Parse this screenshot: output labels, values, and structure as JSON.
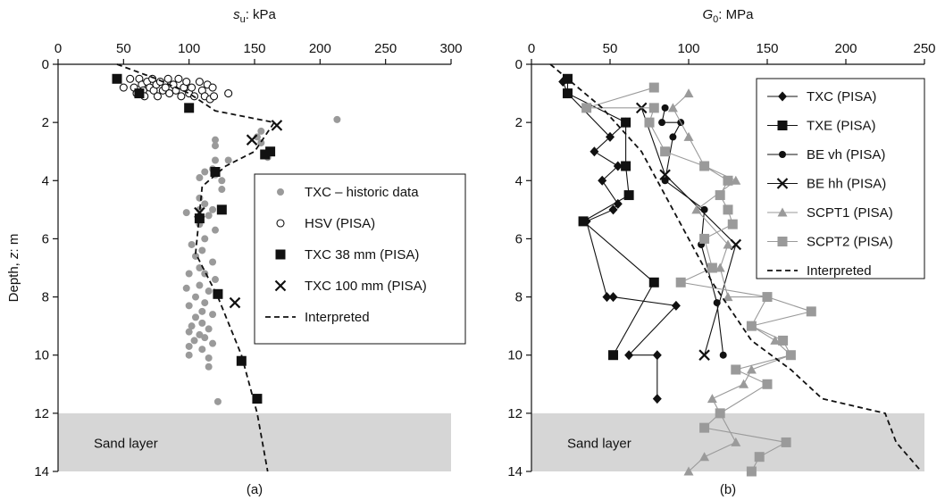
{
  "chart_data": [
    {
      "type": "scatter",
      "panel_label": "(a)",
      "x_symbol": "s",
      "x_subscript": "u",
      "x_unit": ": kPa",
      "y_prefix": "Depth, ",
      "y_symbol": "z",
      "y_unit": ": m",
      "xlim": [
        0,
        300
      ],
      "ylim": [
        14,
        0
      ],
      "xticks": [
        "0",
        "50",
        "100",
        "150",
        "200",
        "250",
        "300"
      ],
      "yticks": [
        "0",
        "2",
        "4",
        "6",
        "8",
        "10",
        "12",
        "14"
      ],
      "sand_layer": {
        "label": "Sand layer",
        "top": 12,
        "bottom": 14
      },
      "legend_position": "right",
      "series": [
        {
          "name": "TXC – historic data",
          "marker": "circle-filled",
          "color": "#9a9a9a",
          "points": [
            [
              213,
              1.9
            ],
            [
              155,
              2.3
            ],
            [
              152,
              2.5
            ],
            [
              120,
              2.6
            ],
            [
              155,
              2.7
            ],
            [
              120,
              2.8
            ],
            [
              160,
              3.2
            ],
            [
              120,
              3.3
            ],
            [
              130,
              3.3
            ],
            [
              118,
              3.6
            ],
            [
              112,
              3.7
            ],
            [
              120,
              3.8
            ],
            [
              108,
              3.9
            ],
            [
              125,
              4.0
            ],
            [
              125,
              4.3
            ],
            [
              108,
              4.6
            ],
            [
              112,
              4.8
            ],
            [
              108,
              5.0
            ],
            [
              118,
              5.0
            ],
            [
              98,
              5.1
            ],
            [
              115,
              5.2
            ],
            [
              108,
              5.5
            ],
            [
              120,
              5.7
            ],
            [
              112,
              6.0
            ],
            [
              102,
              6.2
            ],
            [
              110,
              6.4
            ],
            [
              105,
              6.6
            ],
            [
              118,
              6.8
            ],
            [
              108,
              7.0
            ],
            [
              100,
              7.2
            ],
            [
              112,
              7.2
            ],
            [
              120,
              7.4
            ],
            [
              108,
              7.6
            ],
            [
              98,
              7.7
            ],
            [
              115,
              7.8
            ],
            [
              105,
              8.0
            ],
            [
              112,
              8.2
            ],
            [
              100,
              8.3
            ],
            [
              110,
              8.5
            ],
            [
              118,
              8.6
            ],
            [
              105,
              8.7
            ],
            [
              110,
              8.9
            ],
            [
              102,
              9.0
            ],
            [
              115,
              9.1
            ],
            [
              100,
              9.2
            ],
            [
              108,
              9.3
            ],
            [
              112,
              9.4
            ],
            [
              104,
              9.5
            ],
            [
              118,
              9.6
            ],
            [
              100,
              9.7
            ],
            [
              110,
              9.8
            ],
            [
              115,
              10.1
            ],
            [
              100,
              10.0
            ],
            [
              115,
              10.4
            ],
            [
              122,
              11.6
            ]
          ]
        },
        {
          "name": "HSV (PISA)",
          "marker": "circle-open",
          "color": "#111111",
          "points": [
            [
              50,
              0.8
            ],
            [
              55,
              0.5
            ],
            [
              58,
              0.8
            ],
            [
              60,
              1.0
            ],
            [
              62,
              0.5
            ],
            [
              64,
              0.7
            ],
            [
              65,
              0.9
            ],
            [
              66,
              1.1
            ],
            [
              68,
              0.6
            ],
            [
              70,
              0.8
            ],
            [
              72,
              0.5
            ],
            [
              73,
              0.9
            ],
            [
              75,
              0.7
            ],
            [
              76,
              1.1
            ],
            [
              78,
              0.6
            ],
            [
              80,
              0.9
            ],
            [
              82,
              0.8
            ],
            [
              84,
              0.5
            ],
            [
              85,
              1.0
            ],
            [
              88,
              0.7
            ],
            [
              90,
              0.9
            ],
            [
              92,
              0.5
            ],
            [
              94,
              1.1
            ],
            [
              96,
              0.8
            ],
            [
              98,
              0.6
            ],
            [
              100,
              1.0
            ],
            [
              102,
              0.8
            ],
            [
              104,
              1.1
            ],
            [
              108,
              0.6
            ],
            [
              110,
              0.9
            ],
            [
              112,
              1.1
            ],
            [
              114,
              0.7
            ],
            [
              116,
              1.2
            ],
            [
              118,
              0.8
            ],
            [
              119,
              1.1
            ],
            [
              130,
              1.0
            ]
          ]
        },
        {
          "name": "TXC 38 mm (PISA)",
          "marker": "square-filled",
          "color": "#111111",
          "points": [
            [
              45,
              0.5
            ],
            [
              62,
              1.0
            ],
            [
              100,
              1.5
            ],
            [
              162,
              3.0
            ],
            [
              158,
              3.1
            ],
            [
              120,
              3.7
            ],
            [
              125,
              5.0
            ],
            [
              108,
              5.3
            ],
            [
              122,
              7.9
            ],
            [
              140,
              10.2
            ],
            [
              152,
              11.5
            ]
          ]
        },
        {
          "name": "TXC 100 mm (PISA)",
          "marker": "x",
          "color": "#111111",
          "points": [
            [
              167,
              2.1
            ],
            [
              148,
              2.6
            ],
            [
              108,
              5.1
            ],
            [
              135,
              8.2
            ]
          ]
        },
        {
          "name": "Interpreted",
          "marker": "dashed-line",
          "color": "#111111",
          "points": [
            [
              45,
              0
            ],
            [
              75,
              0.5
            ],
            [
              100,
              1.0
            ],
            [
              120,
              1.6
            ],
            [
              165,
              2.0
            ],
            [
              150,
              3.0
            ],
            [
              128,
              3.5
            ],
            [
              110,
              4.2
            ],
            [
              105,
              6.5
            ],
            [
              122,
              8.0
            ],
            [
              140,
              10.0
            ],
            [
              152,
              12.0
            ],
            [
              160,
              14.0
            ]
          ]
        }
      ]
    },
    {
      "type": "line",
      "panel_label": "(b)",
      "x_symbol": "G",
      "x_subscript": "0",
      "x_unit": ": MPa",
      "xlim": [
        0,
        250
      ],
      "ylim": [
        14,
        0
      ],
      "xticks": [
        "0",
        "50",
        "100",
        "150",
        "200",
        "250"
      ],
      "yticks": [
        "0",
        "2",
        "4",
        "6",
        "8",
        "10",
        "12",
        "14"
      ],
      "sand_layer": {
        "label": "Sand layer",
        "top": 12,
        "bottom": 14
      },
      "legend_position": "top-right",
      "series": [
        {
          "name": "TXC (PISA)",
          "marker": "diamond",
          "color": "#111111",
          "points": [
            [
              20,
              0.6
            ],
            [
              23,
              1.0
            ],
            [
              50,
              2.5
            ],
            [
              60,
              2.0
            ],
            [
              40,
              3.0
            ],
            [
              55,
              3.5
            ],
            [
              45,
              4.0
            ],
            [
              55,
              4.8
            ],
            [
              52,
              5.0
            ],
            [
              35,
              5.4
            ],
            [
              48,
              8.0
            ],
            [
              52,
              8.0
            ],
            [
              92,
              8.3
            ],
            [
              62,
              10.0
            ],
            [
              80,
              10.0
            ],
            [
              80,
              11.5
            ]
          ]
        },
        {
          "name": "TXE (PISA)",
          "marker": "square-filled",
          "color": "#111111",
          "points": [
            [
              23,
              0.5
            ],
            [
              23,
              1.0
            ],
            [
              60,
              2.0
            ],
            [
              60,
              3.5
            ],
            [
              62,
              4.5
            ],
            [
              33,
              5.4
            ],
            [
              78,
              7.5
            ],
            [
              52,
              10.0
            ]
          ]
        },
        {
          "name": "BE vh (PISA)",
          "marker": "circle-filled",
          "color": "#111111",
          "points": [
            [
              85,
              1.5
            ],
            [
              83,
              2.0
            ],
            [
              95,
              2.0
            ],
            [
              90,
              2.5
            ],
            [
              85,
              4.0
            ],
            [
              110,
              5.0
            ],
            [
              108,
              6.2
            ],
            [
              118,
              8.2
            ],
            [
              122,
              10.0
            ]
          ]
        },
        {
          "name": "BE hh (PISA)",
          "marker": "x",
          "color": "#111111",
          "points": [
            [
              70,
              1.5
            ],
            [
              85,
              3.8
            ],
            [
              130,
              6.2
            ],
            [
              110,
              10.0
            ]
          ]
        },
        {
          "name": "SCPT1 (PISA)",
          "marker": "triangle",
          "color": "#9a9a9a",
          "points": [
            [
              100,
              1.0
            ],
            [
              90,
              1.5
            ],
            [
              100,
              2.5
            ],
            [
              110,
              3.5
            ],
            [
              130,
              4.0
            ],
            [
              105,
              5.0
            ],
            [
              125,
              6.2
            ],
            [
              120,
              7.0
            ],
            [
              125,
              8.0
            ],
            [
              150,
              8.0
            ],
            [
              140,
              9.0
            ],
            [
              155,
              9.5
            ],
            [
              165,
              10.0
            ],
            [
              140,
              10.5
            ],
            [
              135,
              11.0
            ],
            [
              115,
              11.5
            ],
            [
              120,
              12.0
            ],
            [
              130,
              13.0
            ],
            [
              110,
              13.5
            ],
            [
              100,
              14.0
            ]
          ]
        },
        {
          "name": "SCPT2 (PISA)",
          "marker": "square-filled",
          "color": "#9a9a9a",
          "points": [
            [
              78,
              0.8
            ],
            [
              35,
              1.5
            ],
            [
              78,
              1.5
            ],
            [
              75,
              2.0
            ],
            [
              85,
              3.0
            ],
            [
              110,
              3.5
            ],
            [
              125,
              4.0
            ],
            [
              120,
              4.5
            ],
            [
              125,
              5.0
            ],
            [
              128,
              5.5
            ],
            [
              110,
              6.0
            ],
            [
              115,
              7.0
            ],
            [
              95,
              7.5
            ],
            [
              150,
              8.0
            ],
            [
              178,
              8.5
            ],
            [
              140,
              9.0
            ],
            [
              160,
              9.5
            ],
            [
              165,
              10.0
            ],
            [
              130,
              10.5
            ],
            [
              150,
              11.0
            ],
            [
              120,
              12.0
            ],
            [
              110,
              12.5
            ],
            [
              162,
              13.0
            ],
            [
              145,
              13.5
            ],
            [
              140,
              14.0
            ]
          ]
        },
        {
          "name": "Interpreted",
          "marker": "dashed-line",
          "color": "#111111",
          "points": [
            [
              12,
              0
            ],
            [
              45,
              1.5
            ],
            [
              70,
              3.0
            ],
            [
              85,
              4.5
            ],
            [
              100,
              6.0
            ],
            [
              115,
              7.5
            ],
            [
              140,
              9.5
            ],
            [
              165,
              10.5
            ],
            [
              185,
              11.5
            ],
            [
              225,
              12.0
            ],
            [
              232,
              13.0
            ],
            [
              248,
              14.0
            ]
          ]
        }
      ]
    }
  ]
}
